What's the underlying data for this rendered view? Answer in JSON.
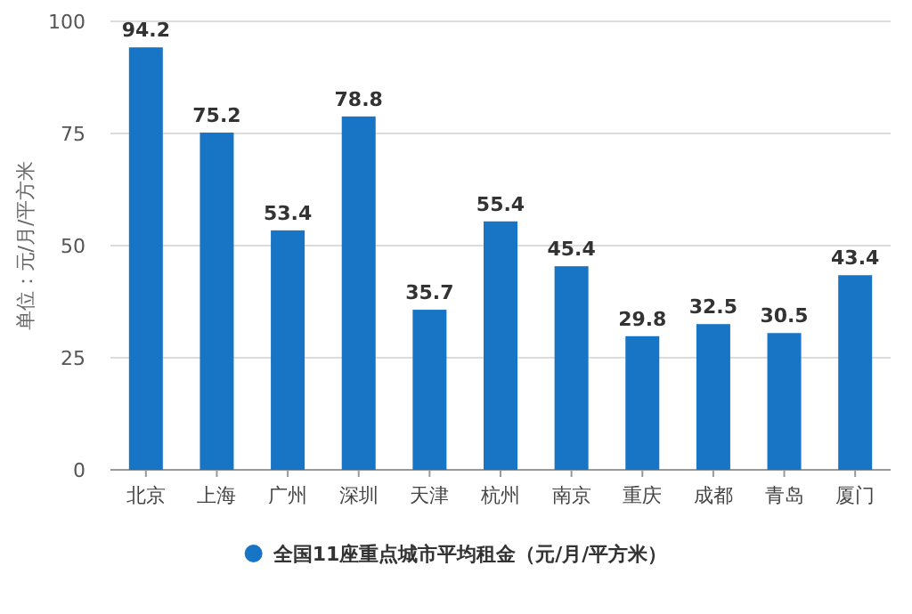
{
  "chart_data": {
    "type": "bar",
    "categories": [
      "北京",
      "上海",
      "广州",
      "深圳",
      "天津",
      "杭州",
      "南京",
      "重庆",
      "成都",
      "青岛",
      "厦门"
    ],
    "series": [
      {
        "name": "全国11座重点城市平均租金（元/月/平方米）",
        "color": "#1874c4",
        "values": [
          94.2,
          75.2,
          53.4,
          78.8,
          35.7,
          55.4,
          45.4,
          29.8,
          32.5,
          30.5,
          43.4
        ]
      }
    ],
    "ylabel": "单位：元/月/平方米",
    "ylim": [
      0,
      100
    ],
    "yticks": [
      0,
      25,
      50,
      75,
      100
    ],
    "grid": "y",
    "legend": "bottom",
    "data_labels": true
  }
}
